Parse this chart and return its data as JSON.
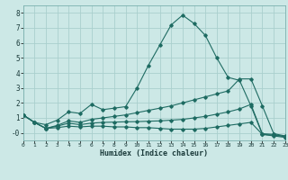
{
  "title": "",
  "xlabel": "Humidex (Indice chaleur)",
  "background_color": "#cce8e6",
  "grid_color": "#aacfcd",
  "line_color": "#1e6b62",
  "lines": [
    {
      "x": [
        0,
        1,
        2,
        3,
        4,
        5,
        6,
        7,
        8,
        9,
        10,
        11,
        12,
        13,
        14,
        15,
        16,
        17,
        18,
        19,
        20,
        21,
        22,
        23
      ],
      "y": [
        1.2,
        0.7,
        0.55,
        0.85,
        1.4,
        1.3,
        1.9,
        1.55,
        1.65,
        1.75,
        3.0,
        4.5,
        5.85,
        7.2,
        7.85,
        7.3,
        6.5,
        5.0,
        3.7,
        3.5,
        1.8,
        -0.1,
        -0.2,
        -0.3
      ]
    },
    {
      "x": [
        0,
        1,
        2,
        3,
        4,
        5,
        6,
        7,
        8,
        9,
        10,
        11,
        12,
        13,
        14,
        15,
        16,
        17,
        18,
        19,
        20,
        21,
        22,
        23
      ],
      "y": [
        1.2,
        0.7,
        0.3,
        0.5,
        0.8,
        0.7,
        0.9,
        1.0,
        1.1,
        1.2,
        1.35,
        1.5,
        1.65,
        1.8,
        2.0,
        2.2,
        2.4,
        2.6,
        2.8,
        3.6,
        3.6,
        1.8,
        -0.05,
        -0.2
      ]
    },
    {
      "x": [
        0,
        1,
        2,
        3,
        4,
        5,
        6,
        7,
        8,
        9,
        10,
        11,
        12,
        13,
        14,
        15,
        16,
        17,
        18,
        19,
        20,
        21,
        22,
        23
      ],
      "y": [
        1.2,
        0.7,
        0.3,
        0.35,
        0.45,
        0.4,
        0.45,
        0.45,
        0.4,
        0.4,
        0.35,
        0.35,
        0.3,
        0.25,
        0.25,
        0.25,
        0.3,
        0.4,
        0.5,
        0.6,
        0.7,
        -0.1,
        -0.15,
        -0.25
      ]
    },
    {
      "x": [
        0,
        1,
        2,
        3,
        4,
        5,
        6,
        7,
        8,
        9,
        10,
        11,
        12,
        13,
        14,
        15,
        16,
        17,
        18,
        19,
        20,
        21,
        22,
        23
      ],
      "y": [
        1.2,
        0.7,
        0.3,
        0.45,
        0.65,
        0.55,
        0.65,
        0.7,
        0.72,
        0.74,
        0.75,
        0.78,
        0.8,
        0.85,
        0.9,
        1.0,
        1.1,
        1.25,
        1.4,
        1.6,
        1.9,
        -0.05,
        -0.1,
        -0.25
      ]
    }
  ],
  "xlim": [
    0,
    23
  ],
  "ylim": [
    -0.5,
    8.5
  ],
  "yticks": [
    0,
    1,
    2,
    3,
    4,
    5,
    6,
    7,
    8
  ],
  "ytick_labels": [
    "-0",
    "1",
    "2",
    "3",
    "4",
    "5",
    "6",
    "7",
    "8"
  ],
  "xticks": [
    0,
    1,
    2,
    3,
    4,
    5,
    6,
    7,
    8,
    9,
    10,
    11,
    12,
    13,
    14,
    15,
    16,
    17,
    18,
    19,
    20,
    21,
    22,
    23
  ]
}
